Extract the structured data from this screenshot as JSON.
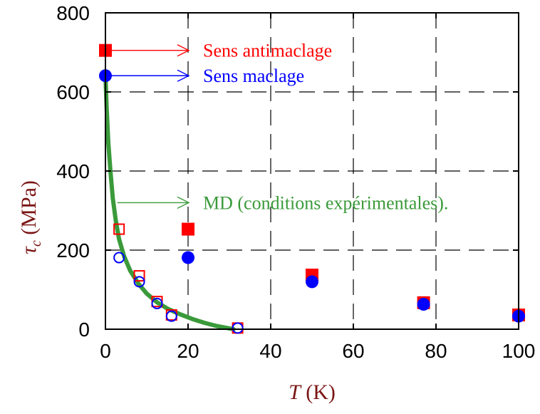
{
  "chart_data": {
    "type": "scatter",
    "title": "",
    "xlabel": {
      "symbol": "T",
      "unit": " (K)"
    },
    "ylabel": {
      "symbol": "τ",
      "subscript": "c",
      "unit": " (MPa)"
    },
    "xlim": [
      0,
      100
    ],
    "ylim": [
      0,
      800
    ],
    "xticks": [
      0,
      20,
      40,
      60,
      80,
      100
    ],
    "yticks": [
      0,
      200,
      400,
      600,
      800
    ],
    "grid": "dashed",
    "colors": {
      "red": "#ff0000",
      "blue": "#0000ff",
      "green": "#3a9a3a",
      "axis_label": "#7a1414"
    },
    "series": [
      {
        "name": "Sens antimaclage",
        "marker": "square-filled",
        "color": "#ff0000",
        "points": [
          [
            0,
            705
          ],
          [
            20,
            253
          ],
          [
            50,
            137
          ],
          [
            77,
            67
          ],
          [
            100,
            36
          ]
        ]
      },
      {
        "name": "Sens maclage",
        "marker": "circle-filled",
        "color": "#0000ff",
        "points": [
          [
            0,
            641
          ],
          [
            20,
            181
          ],
          [
            50,
            120
          ],
          [
            77,
            63
          ],
          [
            100,
            33
          ]
        ]
      },
      {
        "marker": "square-open",
        "color": "#ff0000",
        "points": [
          [
            3.3,
            253
          ],
          [
            8.2,
            135
          ],
          [
            12.5,
            70
          ],
          [
            16,
            36
          ],
          [
            32,
            3
          ]
        ]
      },
      {
        "marker": "circle-open",
        "color": "#0000ff",
        "points": [
          [
            3.3,
            181
          ],
          [
            8.2,
            120
          ],
          [
            12.5,
            65
          ],
          [
            16,
            33
          ],
          [
            32,
            3
          ]
        ]
      },
      {
        "name": "MD (conditions expérimentales).",
        "type": "line",
        "color": "#3a9a3a",
        "points": [
          [
            0,
            641
          ],
          [
            0.3,
            560
          ],
          [
            0.7,
            470
          ],
          [
            1.2,
            400
          ],
          [
            1.8,
            330
          ],
          [
            2.5,
            275
          ],
          [
            3.3,
            228
          ],
          [
            4.5,
            185
          ],
          [
            6,
            148
          ],
          [
            8,
            115
          ],
          [
            10,
            90
          ],
          [
            12.5,
            68
          ],
          [
            15,
            52
          ],
          [
            18,
            38
          ],
          [
            21,
            26
          ],
          [
            24,
            16
          ],
          [
            27,
            8
          ],
          [
            29.5,
            3
          ],
          [
            31,
            0
          ]
        ]
      }
    ],
    "annotations": [
      {
        "text": "Sens antimaclage",
        "color": "#ff0000",
        "arrow_from": [
          0,
          705
        ]
      },
      {
        "text": "Sens maclage",
        "color": "#0000ff",
        "arrow_from": [
          0,
          641
        ]
      },
      {
        "text": "MD (conditions expérimentales).",
        "color": "#3a9a3a",
        "arrow_from": [
          1.5,
          320
        ]
      }
    ]
  }
}
